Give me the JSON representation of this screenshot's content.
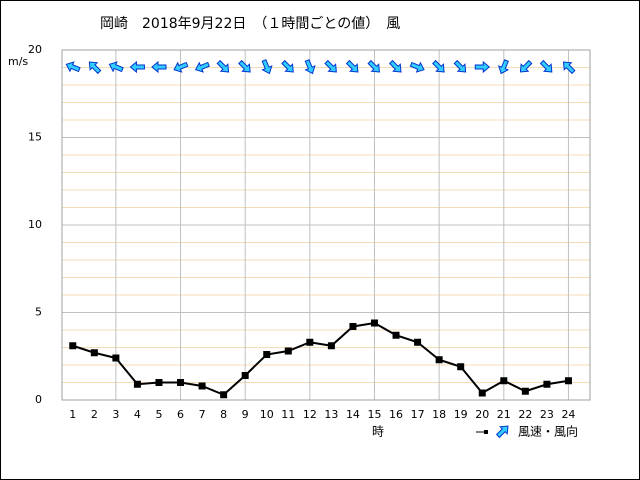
{
  "chart_data": {
    "type": "line",
    "title": "岡崎　2018年9月22日　（１時間ごとの値）　風",
    "y_label": "m/s",
    "x_label": "時",
    "legend_label": "風速・風向",
    "x": [
      1,
      2,
      3,
      4,
      5,
      6,
      7,
      8,
      9,
      10,
      11,
      12,
      13,
      14,
      15,
      16,
      17,
      18,
      19,
      20,
      21,
      22,
      23,
      24
    ],
    "xlim": [
      0.5,
      25
    ],
    "xticks": [
      1,
      2,
      3,
      4,
      5,
      6,
      7,
      8,
      9,
      10,
      11,
      12,
      13,
      14,
      15,
      16,
      17,
      18,
      19,
      20,
      21,
      22,
      23,
      24
    ],
    "x_grid_every": 3,
    "ylim": [
      0,
      20
    ],
    "yticks": [
      0,
      5,
      10,
      15,
      20
    ],
    "minor_grid_step": 1,
    "grid": true,
    "series": [
      {
        "color": "#000000",
        "values": [
          3.1,
          2.7,
          2.4,
          0.9,
          1.0,
          1.0,
          0.8,
          0.3,
          1.4,
          2.6,
          2.8,
          3.3,
          3.1,
          4.2,
          4.4,
          3.7,
          3.3,
          2.3,
          1.9,
          0.4,
          1.1,
          0.5,
          0.9,
          1.1
        ]
      }
    ],
    "wind_direction": [
      292.5,
      315,
      292.5,
      270,
      270,
      247.5,
      247.5,
      135,
      135,
      157.5,
      135,
      157.5,
      135,
      135,
      135,
      135,
      112.5,
      135,
      135,
      90,
      202.5,
      225,
      135,
      315
    ],
    "arrow_color": "#33ccff",
    "arrow_outline": "#0033cc"
  }
}
